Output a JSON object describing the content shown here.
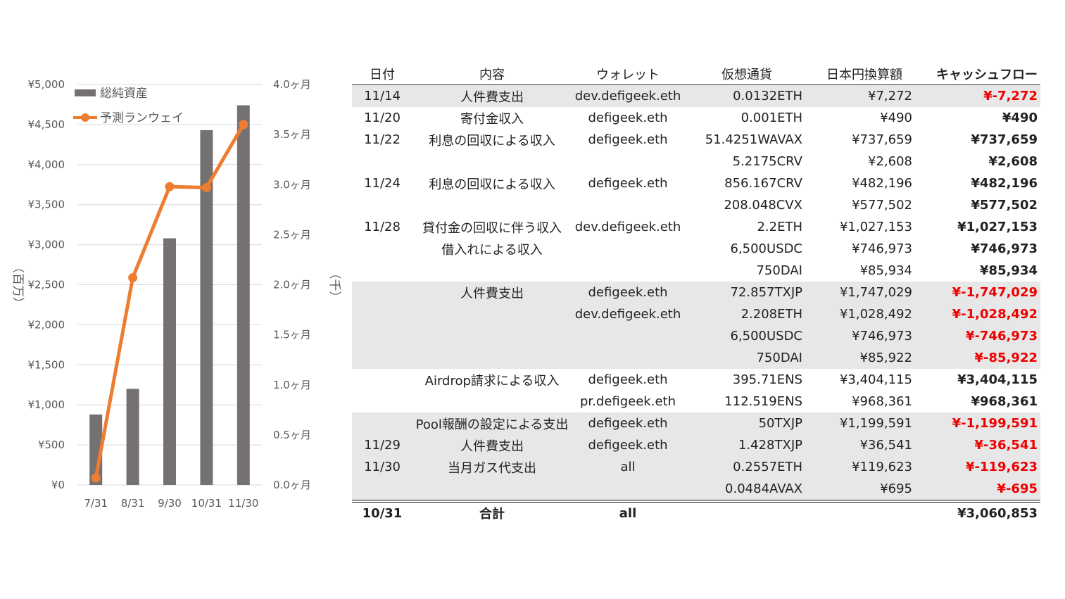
{
  "chart_data": {
    "type": "bar+line",
    "categories": [
      "7/31",
      "8/31",
      "9/30",
      "10/31",
      "11/30"
    ],
    "series": [
      {
        "name": "総純資産",
        "type": "bar",
        "axis": "left",
        "color": "#767171",
        "values": [
          880,
          1200,
          3080,
          4430,
          4740
        ]
      },
      {
        "name": "予測ランウェイ",
        "type": "line",
        "axis": "right",
        "color": "#ED7D31",
        "values": [
          0.07,
          2.07,
          2.98,
          2.97,
          3.6
        ]
      }
    ],
    "y_left": {
      "ticks": [
        "¥0",
        "¥500",
        "¥1,000",
        "¥1,500",
        "¥2,000",
        "¥2,500",
        "¥3,000",
        "¥3,500",
        "¥4,000",
        "¥4,500",
        "¥5,000"
      ],
      "ylim": [
        0,
        5000
      ],
      "label": "（百万）"
    },
    "y_right": {
      "ticks": [
        "0.0ヶ月",
        "0.5ヶ月",
        "1.0ヶ月",
        "1.5ヶ月",
        "2.0ヶ月",
        "2.5ヶ月",
        "3.0ヶ月",
        "3.5ヶ月",
        "4.0ヶ月"
      ],
      "ylim": [
        0,
        4
      ],
      "label": "（千）"
    },
    "grid": true,
    "legend": "top-left"
  },
  "table": {
    "headers": {
      "date": "日付",
      "desc": "内容",
      "wallet": "ウォレット",
      "crypto": "仮想通貨",
      "jpy": "日本円換算額",
      "cf": "キャッシュフロー"
    },
    "rows": [
      {
        "date": "11/14",
        "desc": "人件費支出",
        "wallet": "dev.defigeek.eth",
        "crypto": "0.0132ETH",
        "jpy": "¥7,272",
        "cf": "¥-7,272",
        "neg": true,
        "shade": true
      },
      {
        "date": "11/20",
        "desc": "寄付金収入",
        "wallet": "defigeek.eth",
        "crypto": "0.001ETH",
        "jpy": "¥490",
        "cf": "¥490",
        "neg": false,
        "shade": false
      },
      {
        "date": "11/22",
        "desc": "利息の回収による収入",
        "wallet": "defigeek.eth",
        "crypto": "51.4251WAVAX",
        "jpy": "¥737,659",
        "cf": "¥737,659",
        "neg": false,
        "shade": false
      },
      {
        "date": "",
        "desc": "",
        "wallet": "",
        "crypto": "5.2175CRV",
        "jpy": "¥2,608",
        "cf": "¥2,608",
        "neg": false,
        "shade": false
      },
      {
        "date": "11/24",
        "desc": "利息の回収による収入",
        "wallet": "defigeek.eth",
        "crypto": "856.167CRV",
        "jpy": "¥482,196",
        "cf": "¥482,196",
        "neg": false,
        "shade": false
      },
      {
        "date": "",
        "desc": "",
        "wallet": "",
        "crypto": "208.048CVX",
        "jpy": "¥577,502",
        "cf": "¥577,502",
        "neg": false,
        "shade": false
      },
      {
        "date": "11/28",
        "desc": "貸付金の回収に伴う収入",
        "wallet": "dev.defigeek.eth",
        "crypto": "2.2ETH",
        "jpy": "¥1,027,153",
        "cf": "¥1,027,153",
        "neg": false,
        "shade": false
      },
      {
        "date": "",
        "desc": "借入れによる収入",
        "wallet": "",
        "crypto": "6,500USDC",
        "jpy": "¥746,973",
        "cf": "¥746,973",
        "neg": false,
        "shade": false
      },
      {
        "date": "",
        "desc": "",
        "wallet": "",
        "crypto": "750DAI",
        "jpy": "¥85,934",
        "cf": "¥85,934",
        "neg": false,
        "shade": false
      },
      {
        "date": "",
        "desc": "人件費支出",
        "wallet": "defigeek.eth",
        "crypto": "72.857TXJP",
        "jpy": "¥1,747,029",
        "cf": "¥-1,747,029",
        "neg": true,
        "shade": true
      },
      {
        "date": "",
        "desc": "",
        "wallet": "dev.defigeek.eth",
        "crypto": "2.208ETH",
        "jpy": "¥1,028,492",
        "cf": "¥-1,028,492",
        "neg": true,
        "shade": true
      },
      {
        "date": "",
        "desc": "",
        "wallet": "",
        "crypto": "6,500USDC",
        "jpy": "¥746,973",
        "cf": "¥-746,973",
        "neg": true,
        "shade": true
      },
      {
        "date": "",
        "desc": "",
        "wallet": "",
        "crypto": "750DAI",
        "jpy": "¥85,922",
        "cf": "¥-85,922",
        "neg": true,
        "shade": true
      },
      {
        "date": "",
        "desc": "Airdrop請求による収入",
        "wallet": "defigeek.eth",
        "crypto": "395.71ENS",
        "jpy": "¥3,404,115",
        "cf": "¥3,404,115",
        "neg": false,
        "shade": false
      },
      {
        "date": "",
        "desc": "",
        "wallet": "pr.defigeek.eth",
        "crypto": "112.519ENS",
        "jpy": "¥968,361",
        "cf": "¥968,361",
        "neg": false,
        "shade": false
      },
      {
        "date": "",
        "desc": "Pool報酬の設定による支出",
        "wallet": "defigeek.eth",
        "crypto": "50TXJP",
        "jpy": "¥1,199,591",
        "cf": "¥-1,199,591",
        "neg": true,
        "shade": true
      },
      {
        "date": "11/29",
        "desc": "人件費支出",
        "wallet": "defigeek.eth",
        "crypto": "1.428TXJP",
        "jpy": "¥36,541",
        "cf": "¥-36,541",
        "neg": true,
        "shade": true
      },
      {
        "date": "11/30",
        "desc": "当月ガス代支出",
        "wallet": "all",
        "crypto": "0.2557ETH",
        "jpy": "¥119,623",
        "cf": "¥-119,623",
        "neg": true,
        "shade": true
      },
      {
        "date": "",
        "desc": "",
        "wallet": "",
        "crypto": "0.0484AVAX",
        "jpy": "¥695",
        "cf": "¥-695",
        "neg": true,
        "shade": true
      }
    ],
    "total": {
      "date": "10/31",
      "desc": "合計",
      "wallet": "all",
      "crypto": "",
      "jpy": "",
      "cf": "¥3,060,853"
    }
  }
}
